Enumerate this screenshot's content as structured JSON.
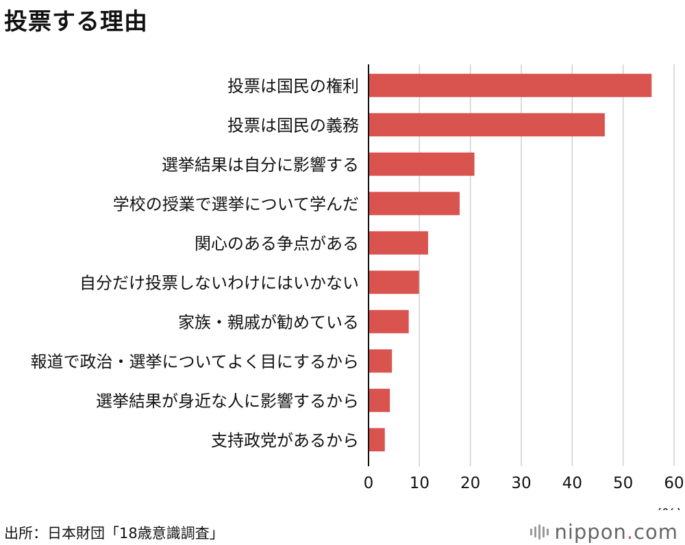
{
  "title": "投票する理由",
  "source": "出所：日本財団「18歳意識調査」",
  "brand": {
    "name": "nippon",
    "dot": ".",
    "tld": "com",
    "icon": "sound-bars-icon"
  },
  "colors": {
    "bar": "#d9534f",
    "grid": "#cfcfcf",
    "axis": "#111111",
    "brand_dot": "#d9534f"
  },
  "chart_data": {
    "type": "bar",
    "orientation": "horizontal",
    "categories": [
      "投票は国民の権利",
      "投票は国民の義務",
      "選挙結果は自分に影響する",
      "学校の授業で選挙について学んだ",
      "関心のある争点がある",
      "自分だけ投票しないわけにはいかない",
      "家族・親戚が勧めている",
      "報道で政治・選挙についてよく目にするから",
      "選挙結果が身近な人に影響するから",
      "支持政党があるから"
    ],
    "values": [
      55.6,
      46.4,
      20.8,
      17.9,
      11.7,
      9.9,
      7.9,
      4.6,
      4.2,
      3.2
    ],
    "xlim": [
      0,
      60
    ],
    "xticks": [
      0,
      10,
      20,
      30,
      40,
      50,
      60
    ],
    "unit": "(%)",
    "grid": true
  }
}
